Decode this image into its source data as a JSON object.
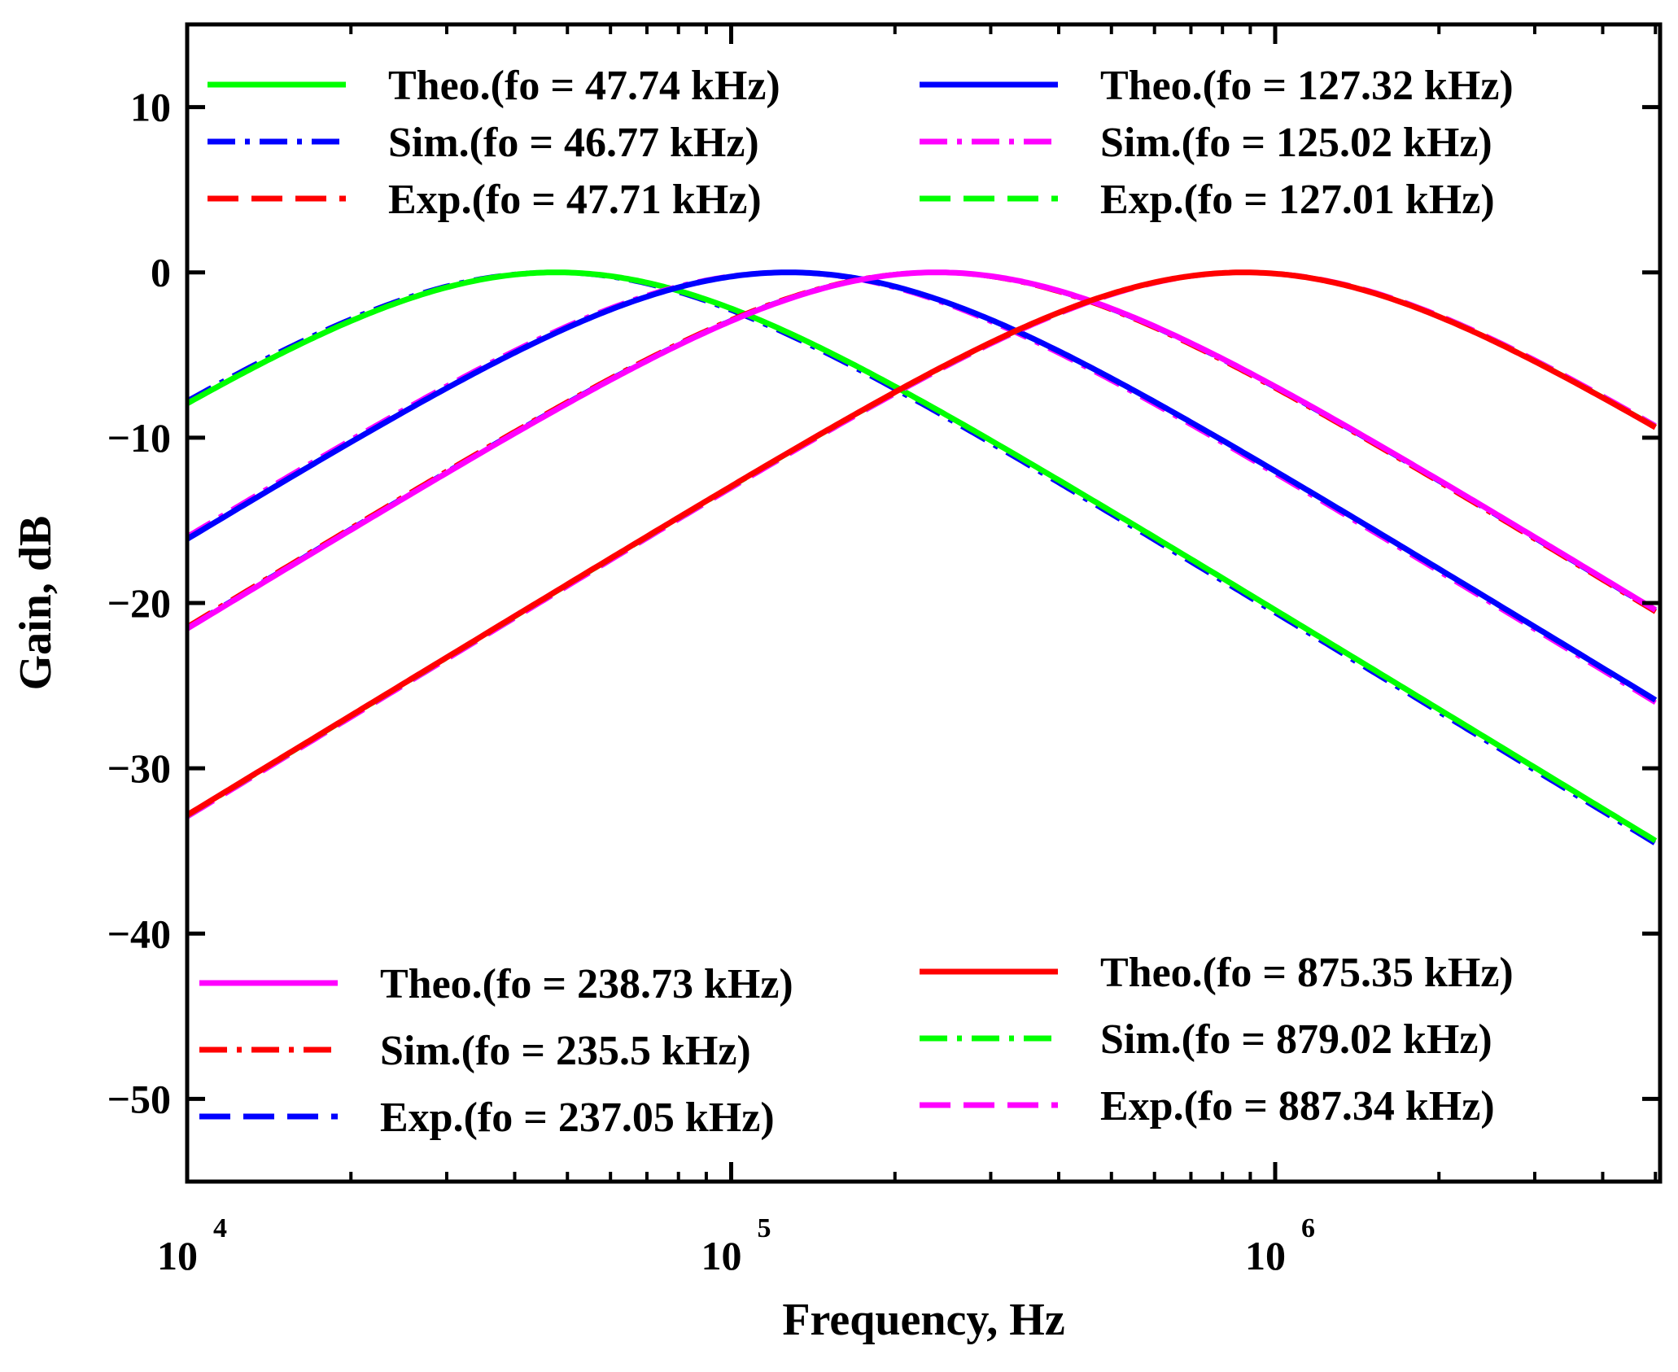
{
  "chart_data": {
    "type": "line",
    "title": "",
    "xlabel": "Frequency, Hz",
    "ylabel": "Gain, dB",
    "xscale": "log",
    "xlim": [
      10000,
      5000000
    ],
    "ylim": [
      -55,
      15
    ],
    "grid": false,
    "x_ticks": [
      {
        "value": 10000,
        "base": "10",
        "exponent": "4"
      },
      {
        "value": 100000,
        "base": "10",
        "exponent": "5"
      },
      {
        "value": 1000000,
        "base": "10",
        "exponent": "6"
      }
    ],
    "y_ticks": [
      {
        "value": 10,
        "label": "10"
      },
      {
        "value": 0,
        "label": "0"
      },
      {
        "value": -10,
        "label": "−10"
      },
      {
        "value": -20,
        "label": "−20"
      },
      {
        "value": -30,
        "label": "−30"
      },
      {
        "value": -40,
        "label": "−40"
      },
      {
        "value": -50,
        "label": "−50"
      }
    ],
    "legend_location": "top and bottom, two columns each",
    "legends": [
      {
        "position": "top-left",
        "entries": [
          {
            "label": "Theo.(fo = 47.74 kHz)",
            "color": "#00ff00",
            "dash": "solid"
          },
          {
            "label": "Sim.(fo = 46.77 kHz)",
            "color": "#0000ff",
            "dash": "dashdot"
          },
          {
            "label": "Exp.(fo = 47.71 kHz)",
            "color": "#ff0000",
            "dash": "dashed"
          }
        ]
      },
      {
        "position": "top-right",
        "entries": [
          {
            "label": "Theo.(fo = 127.32 kHz)",
            "color": "#0000ff",
            "dash": "solid"
          },
          {
            "label": "Sim.(fo = 125.02 kHz)",
            "color": "#ff00ff",
            "dash": "dashdot"
          },
          {
            "label": "Exp.(fo = 127.01 kHz)",
            "color": "#00ff00",
            "dash": "dashed"
          }
        ]
      },
      {
        "position": "bottom-left",
        "entries": [
          {
            "label": "Theo.(fo = 238.73 kHz)",
            "color": "#ff00ff",
            "dash": "solid"
          },
          {
            "label": "Sim.(fo = 235.5 kHz)",
            "color": "#ff0000",
            "dash": "dashdot"
          },
          {
            "label": "Exp.(fo = 237.05 kHz)",
            "color": "#0000ff",
            "dash": "dashed"
          }
        ]
      },
      {
        "position": "bottom-right",
        "entries": [
          {
            "label": "Theo.(fo = 875.35 kHz)",
            "color": "#ff0000",
            "dash": "solid"
          },
          {
            "label": "Sim.(fo = 879.02 kHz)",
            "color": "#00ff00",
            "dash": "dashdot"
          },
          {
            "label": "Exp.(fo = 887.34 kHz)",
            "color": "#ff00ff",
            "dash": "dashed"
          }
        ]
      }
    ],
    "series": [
      {
        "name": "Theo.(fo = 47.74 kHz)",
        "fo_khz": 47.74,
        "color": "#00ff00",
        "dash": "solid"
      },
      {
        "name": "Sim.(fo = 46.77 kHz)",
        "fo_khz": 46.77,
        "color": "#0000ff",
        "dash": "dashdot"
      },
      {
        "name": "Exp.(fo = 47.71 kHz)",
        "fo_khz": 47.71,
        "color": "#ff0000",
        "dash": "dashed"
      },
      {
        "name": "Theo.(fo = 127.32 kHz)",
        "fo_khz": 127.32,
        "color": "#0000ff",
        "dash": "solid"
      },
      {
        "name": "Sim.(fo = 125.02 kHz)",
        "fo_khz": 125.02,
        "color": "#ff00ff",
        "dash": "dashdot"
      },
      {
        "name": "Exp.(fo = 127.01 kHz)",
        "fo_khz": 127.01,
        "color": "#00ff00",
        "dash": "dashed"
      },
      {
        "name": "Theo.(fo = 238.73 kHz)",
        "fo_khz": 238.73,
        "color": "#ff00ff",
        "dash": "solid"
      },
      {
        "name": "Sim.(fo = 235.5 kHz)",
        "fo_khz": 235.5,
        "color": "#ff0000",
        "dash": "dashdot"
      },
      {
        "name": "Exp.(fo = 237.05 kHz)",
        "fo_khz": 237.05,
        "color": "#0000ff",
        "dash": "dashed"
      },
      {
        "name": "Theo.(fo = 875.35 kHz)",
        "fo_khz": 875.35,
        "color": "#ff0000",
        "dash": "solid"
      },
      {
        "name": "Sim.(fo = 879.02 kHz)",
        "fo_khz": 879.02,
        "color": "#00ff00",
        "dash": "dashdot"
      },
      {
        "name": "Exp.(fo = 887.34 kHz)",
        "fo_khz": 887.34,
        "color": "#ff00ff",
        "dash": "dashed"
      }
    ],
    "curve_model": "second-order bandpass, gain_dB = -10*log10(1 + Q^2*(f/fo - fo/f)^2), Q = 0.5, peak 0 dB at fo"
  }
}
